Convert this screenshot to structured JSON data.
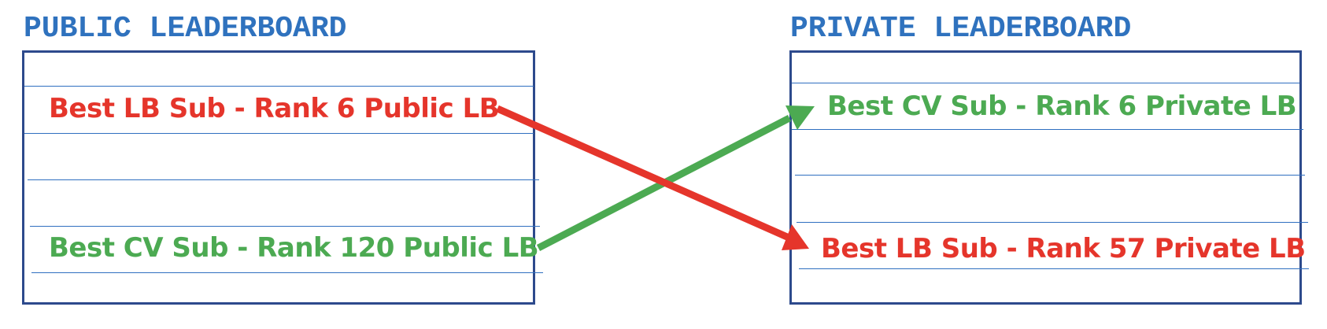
{
  "public_board": {
    "title": "PUBLIC LEADERBOARD",
    "best_lb_entry": "Best LB Sub - Rank 6 Public LB",
    "best_cv_entry": "Best CV Sub - Rank 120 Public LB"
  },
  "private_board": {
    "title": "PRIVATE LEADERBOARD",
    "best_cv_entry": "Best CV Sub - Rank 6 Private LB",
    "best_lb_entry": "Best LB Sub - Rank 57 Private LB"
  },
  "colors": {
    "title": "#2f72be",
    "border": "#2d4a8c",
    "row_line": "#2f6fc0",
    "lb_sub": "#e5352b",
    "cv_sub": "#4caa52"
  }
}
